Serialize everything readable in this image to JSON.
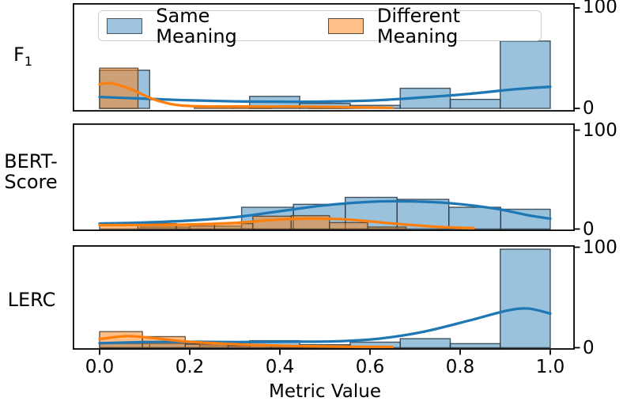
{
  "figure": {
    "xlabel": "Metric Value",
    "x_ticks": [
      "0.0",
      "0.2",
      "0.4",
      "0.6",
      "0.8",
      "1.0"
    ],
    "x_tick_values": [
      0,
      0.2,
      0.4,
      0.6,
      0.8,
      1.0
    ],
    "y_ticks": [
      "0",
      "100"
    ],
    "legend": [
      {
        "label": "Same Meaning",
        "fill": "#9dc3de",
        "edge": "#46555f"
      },
      {
        "label": "Different Meaning",
        "fill": "#ffbf86",
        "edge": "#55493d"
      }
    ]
  },
  "colors": {
    "axis": "#000000",
    "series_lines": [
      "#1f77b4",
      "#ff7f0e"
    ],
    "series_fills": [
      "rgba(31,119,180,0.45)",
      "rgba(255,127,14,0.5)"
    ],
    "series_edges": [
      "rgba(42,56,68,0.85)",
      "rgba(84,64,44,0.85)"
    ]
  },
  "chart_data": {
    "type": "histogram+kde",
    "xlabel": "Metric Value",
    "x_range": [
      -0.06,
      1.06
    ],
    "ylim": [
      0,
      105
    ],
    "yticks": [
      0,
      100
    ],
    "legend_position": "top of first panel, horizontal",
    "panels": [
      {
        "id": "f1",
        "name": "F1",
        "label_main": "F",
        "label_sub": "1",
        "series": [
          {
            "name": "Same Meaning",
            "bars": [
              [
                0,
                0.111,
                38
              ],
              [
                0.333,
                0.444,
                12
              ],
              [
                0.444,
                0.556,
                5
              ],
              [
                0.556,
                0.667,
                3
              ],
              [
                0.667,
                0.778,
                20
              ],
              [
                0.778,
                0.889,
                9
              ],
              [
                0.889,
                1.0,
                67
              ]
            ],
            "kde": [
              [
                0,
                11.3
              ],
              [
                0.08,
                10
              ],
              [
                0.18,
                8.3
              ],
              [
                0.3,
                7
              ],
              [
                0.42,
                6.5
              ],
              [
                0.52,
                6.9
              ],
              [
                0.62,
                8.2
              ],
              [
                0.72,
                11
              ],
              [
                0.82,
                14.5
              ],
              [
                0.92,
                19
              ],
              [
                1.0,
                21.5
              ]
            ]
          },
          {
            "name": "Different Meaning",
            "bars": [
              [
                0,
                0.085,
                40
              ],
              [
                0.21,
                0.295,
                2
              ],
              [
                0.295,
                0.38,
                1.5
              ],
              [
                0.465,
                0.55,
                2
              ]
            ],
            "kde": [
              [
                0,
                24
              ],
              [
                0.025,
                25
              ],
              [
                0.07,
                19
              ],
              [
                0.12,
                9
              ],
              [
                0.17,
                3.5
              ],
              [
                0.23,
                2
              ],
              [
                0.32,
                1.8
              ],
              [
                0.42,
                1.8
              ],
              [
                0.52,
                1.5
              ],
              [
                0.6,
                0.9
              ],
              [
                0.65,
                0.5
              ]
            ]
          }
        ]
      },
      {
        "id": "bertscore",
        "name": "BERT-Score",
        "label_lines": [
          "BERT-",
          "Score"
        ],
        "series": [
          {
            "name": "Same Meaning",
            "bars": [
              [
                0.09,
                0.2,
                2
              ],
              [
                0.2,
                0.315,
                3
              ],
              [
                0.315,
                0.43,
                22
              ],
              [
                0.43,
                0.545,
                25
              ],
              [
                0.545,
                0.66,
                32
              ],
              [
                0.66,
                0.775,
                30
              ],
              [
                0.775,
                0.89,
                22
              ],
              [
                0.89,
                1.0,
                20
              ]
            ],
            "kde": [
              [
                0,
                5.5
              ],
              [
                0.1,
                6.6
              ],
              [
                0.2,
                8.6
              ],
              [
                0.3,
                12
              ],
              [
                0.4,
                18
              ],
              [
                0.5,
                24
              ],
              [
                0.6,
                27.5
              ],
              [
                0.68,
                28
              ],
              [
                0.78,
                26
              ],
              [
                0.88,
                20.5
              ],
              [
                0.95,
                14
              ],
              [
                1.0,
                10.5
              ]
            ]
          },
          {
            "name": "Different Meaning",
            "bars": [
              [
                0,
                0.085,
                5.5
              ],
              [
                0.085,
                0.17,
                5.5
              ],
              [
                0.17,
                0.255,
                5
              ],
              [
                0.255,
                0.34,
                5.5
              ],
              [
                0.34,
                0.425,
                13
              ],
              [
                0.425,
                0.51,
                13.5
              ],
              [
                0.51,
                0.595,
                6.5
              ],
              [
                0.595,
                0.68,
                2
              ]
            ],
            "kde": [
              [
                0,
                4
              ],
              [
                0.1,
                4.1
              ],
              [
                0.2,
                4.6
              ],
              [
                0.3,
                6.2
              ],
              [
                0.4,
                9.6
              ],
              [
                0.47,
                10.6
              ],
              [
                0.55,
                9.6
              ],
              [
                0.65,
                5.6
              ],
              [
                0.75,
                2.2
              ],
              [
                0.83,
                0.9
              ]
            ]
          }
        ]
      },
      {
        "id": "lerc",
        "name": "LERC",
        "label_lines": [
          "LERC"
        ],
        "series": [
          {
            "name": "Same Meaning",
            "bars": [
              [
                0,
                0.111,
                4
              ],
              [
                0.111,
                0.222,
                4
              ],
              [
                0.222,
                0.333,
                2
              ],
              [
                0.333,
                0.444,
                7
              ],
              [
                0.444,
                0.556,
                3
              ],
              [
                0.556,
                0.667,
                5.5
              ],
              [
                0.667,
                0.778,
                9
              ],
              [
                0.778,
                0.889,
                4
              ],
              [
                0.889,
                1.0,
                98
              ]
            ],
            "kde": [
              [
                0,
                4.5
              ],
              [
                0.1,
                5.6
              ],
              [
                0.2,
                5.9
              ],
              [
                0.3,
                5.6
              ],
              [
                0.42,
                6
              ],
              [
                0.52,
                6.3
              ],
              [
                0.62,
                9
              ],
              [
                0.72,
                16
              ],
              [
                0.82,
                27
              ],
              [
                0.9,
                36.5
              ],
              [
                0.95,
                39
              ],
              [
                1.0,
                34
              ]
            ]
          },
          {
            "name": "Different Meaning",
            "bars": [
              [
                0,
                0.095,
                16
              ],
              [
                0.095,
                0.19,
                11
              ],
              [
                0.19,
                0.285,
                3.5
              ],
              [
                0.285,
                0.38,
                2
              ],
              [
                0.38,
                0.475,
                1.5
              ],
              [
                0.475,
                0.57,
                1
              ]
            ],
            "kde": [
              [
                0,
                8.5
              ],
              [
                0.06,
                11.5
              ],
              [
                0.12,
                9.5
              ],
              [
                0.18,
                6.6
              ],
              [
                0.25,
                4.6
              ],
              [
                0.35,
                2.6
              ],
              [
                0.45,
                1.6
              ],
              [
                0.55,
                1
              ],
              [
                0.65,
                0.8
              ]
            ]
          }
        ]
      }
    ]
  }
}
